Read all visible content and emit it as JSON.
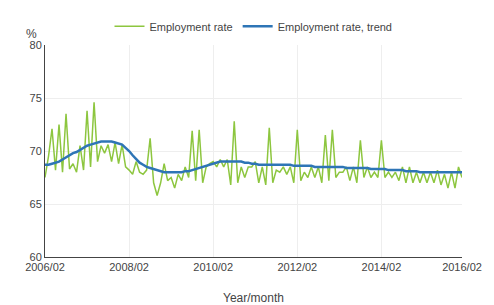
{
  "chart_data": {
    "type": "line",
    "xlabel": "Year/month",
    "ylabel": "%",
    "categories": [
      "2006/02",
      null,
      null,
      null,
      null,
      null,
      null,
      null,
      null,
      null,
      null,
      null,
      null,
      null,
      null,
      null,
      null,
      null,
      null,
      null,
      null,
      null,
      null,
      null,
      "2008/02",
      null,
      null,
      null,
      null,
      null,
      null,
      null,
      null,
      null,
      null,
      null,
      null,
      null,
      null,
      null,
      null,
      null,
      null,
      null,
      null,
      null,
      null,
      null,
      "2010/02",
      null,
      null,
      null,
      null,
      null,
      null,
      null,
      null,
      null,
      null,
      null,
      null,
      null,
      null,
      null,
      null,
      null,
      null,
      null,
      null,
      null,
      null,
      null,
      "2012/02",
      null,
      null,
      null,
      null,
      null,
      null,
      null,
      null,
      null,
      null,
      null,
      null,
      null,
      null,
      null,
      null,
      null,
      null,
      null,
      null,
      null,
      null,
      null,
      "2014/02",
      null,
      null,
      null,
      null,
      null,
      null,
      null,
      null,
      null,
      null,
      null,
      null,
      null,
      null,
      null,
      null,
      null,
      null,
      null,
      null,
      null,
      null,
      "2016/02"
    ],
    "series": [
      {
        "name": "Employment rate",
        "color": "#8dc63f",
        "values": [
          67.5,
          69.5,
          72.1,
          68.2,
          72.5,
          68.0,
          73.5,
          68.3,
          68.8,
          68.0,
          70.5,
          68.2,
          73.8,
          68.5,
          74.6,
          69.0,
          70.5,
          69.8,
          70.6,
          69.0,
          70.8,
          68.8,
          70.6,
          68.5,
          68.2,
          67.8,
          69.0,
          68.0,
          67.8,
          68.2,
          71.2,
          67.0,
          65.8,
          67.0,
          68.8,
          67.2,
          67.5,
          66.5,
          67.8,
          67.2,
          68.5,
          67.5,
          71.9,
          67.2,
          72.0,
          67.0,
          68.5,
          68.8,
          69.0,
          68.5,
          69.2,
          68.5,
          69.2,
          66.8,
          72.8,
          67.0,
          68.5,
          67.5,
          68.5,
          68.5,
          69.0,
          67.0,
          68.5,
          66.8,
          72.2,
          67.0,
          68.2,
          68.0,
          68.5,
          67.8,
          68.5,
          67.0,
          72.0,
          67.2,
          68.0,
          67.5,
          68.5,
          67.5,
          68.5,
          67.0,
          71.5,
          67.2,
          72.0,
          67.5,
          68.0,
          68.0,
          68.5,
          67.2,
          68.5,
          67.0,
          71.0,
          67.5,
          68.5,
          67.5,
          68.0,
          67.5,
          71.0,
          67.5,
          68.0,
          67.5,
          68.0,
          67.2,
          68.5,
          67.0,
          68.5,
          67.0,
          68.0,
          67.0,
          68.0,
          67.0,
          68.0,
          67.0,
          68.2,
          66.8,
          67.8,
          66.5,
          68.0,
          66.5,
          68.5,
          67.5
        ]
      },
      {
        "name": "Employment rate, trend",
        "color": "#2e75b6",
        "values": [
          68.7,
          68.7,
          68.8,
          68.9,
          69.0,
          69.2,
          69.4,
          69.6,
          69.8,
          69.9,
          70.1,
          70.3,
          70.5,
          70.6,
          70.7,
          70.8,
          70.9,
          70.9,
          70.9,
          70.9,
          70.8,
          70.7,
          70.6,
          70.3,
          70.0,
          69.6,
          69.2,
          68.9,
          68.7,
          68.5,
          68.4,
          68.3,
          68.2,
          68.1,
          68.0,
          68.0,
          68.0,
          68.0,
          68.0,
          68.0,
          68.1,
          68.1,
          68.2,
          68.3,
          68.4,
          68.5,
          68.6,
          68.7,
          68.8,
          68.9,
          69.0,
          69.0,
          69.0,
          69.0,
          69.0,
          69.0,
          69.0,
          68.9,
          68.9,
          68.8,
          68.8,
          68.7,
          68.7,
          68.7,
          68.7,
          68.7,
          68.7,
          68.7,
          68.7,
          68.7,
          68.7,
          68.6,
          68.6,
          68.6,
          68.6,
          68.6,
          68.6,
          68.5,
          68.5,
          68.5,
          68.5,
          68.5,
          68.5,
          68.5,
          68.5,
          68.5,
          68.4,
          68.4,
          68.4,
          68.4,
          68.4,
          68.4,
          68.4,
          68.3,
          68.3,
          68.3,
          68.3,
          68.3,
          68.2,
          68.2,
          68.2,
          68.2,
          68.2,
          68.1,
          68.1,
          68.1,
          68.1,
          68.0,
          68.0,
          68.0,
          68.0,
          68.0,
          68.0,
          68.0,
          68.0,
          68.0,
          68.0,
          68.0,
          68.0,
          68.0
        ]
      }
    ],
    "ylim": [
      60,
      80
    ],
    "yticks": [
      60,
      65,
      70,
      75,
      80
    ],
    "grid": true,
    "legend": "top"
  }
}
